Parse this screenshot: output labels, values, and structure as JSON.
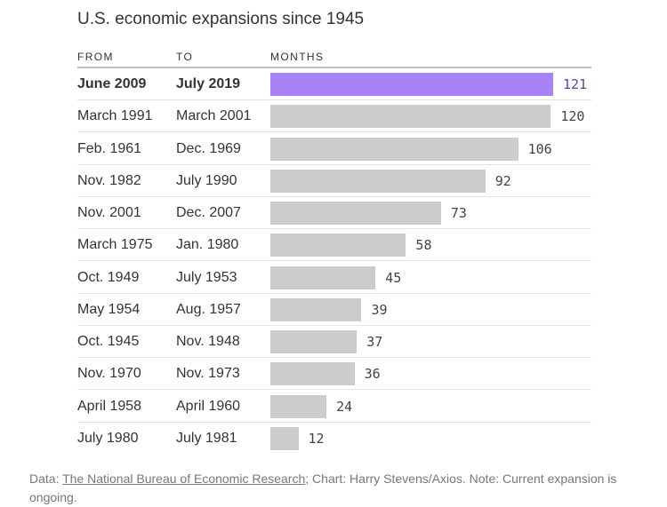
{
  "title": "U.S. economic expansions since 1945",
  "headers": {
    "from": "FROM",
    "to": "TO",
    "months": "MONTHS"
  },
  "colors": {
    "highlight": "#a882f7",
    "bar": "#cccccc",
    "highlight_text": "#5b3fb0"
  },
  "chart_data": {
    "type": "bar",
    "orientation": "horizontal",
    "title": "U.S. economic expansions since 1945",
    "xlabel": "MONTHS",
    "ylabel": "",
    "xlim": [
      0,
      121
    ],
    "grid": false,
    "rows": [
      {
        "from": "June 2009",
        "to": "July 2019",
        "months": 121,
        "highlight": true
      },
      {
        "from": "March 1991",
        "to": "March 2001",
        "months": 120
      },
      {
        "from": "Feb. 1961",
        "to": "Dec. 1969",
        "months": 106
      },
      {
        "from": "Nov. 1982",
        "to": "July 1990",
        "months": 92
      },
      {
        "from": "Nov. 2001",
        "to": "Dec. 2007",
        "months": 73
      },
      {
        "from": "March 1975",
        "to": "Jan. 1980",
        "months": 58
      },
      {
        "from": "Oct. 1949",
        "to": "July 1953",
        "months": 45
      },
      {
        "from": "May 1954",
        "to": "Aug. 1957",
        "months": 39
      },
      {
        "from": "Oct. 1945",
        "to": "Nov. 1948",
        "months": 37
      },
      {
        "from": "Nov. 1970",
        "to": "Nov. 1973",
        "months": 36
      },
      {
        "from": "April 1958",
        "to": "April 1960",
        "months": 24
      },
      {
        "from": "July 1980",
        "to": "July 1981",
        "months": 12
      }
    ]
  },
  "footer": {
    "data_label": "Data: ",
    "source_link": "The National Bureau of Economic Research",
    "rest": "; Chart: Harry Stevens/Axios. Note: Current expansion is ongoing."
  }
}
